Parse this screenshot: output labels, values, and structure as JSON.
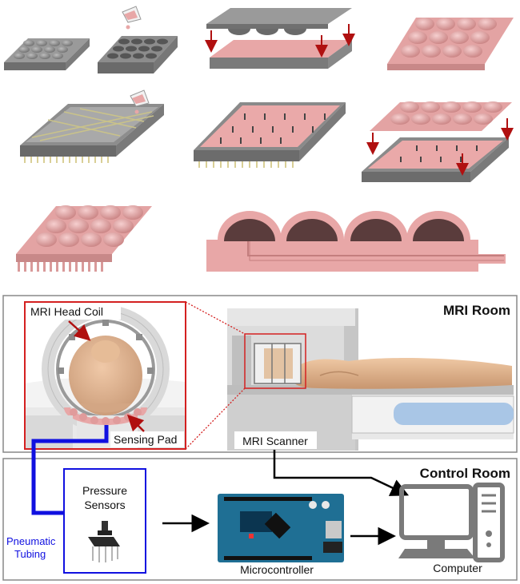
{
  "mri_room": {
    "title": "MRI Room",
    "head_coil_label": "MRI Head Coil",
    "sensing_pad_label": "Sensing Pad",
    "scanner_label": "MRI Scanner"
  },
  "control_room": {
    "title": "Control Room",
    "pressure_sensors_line1": "Pressure",
    "pressure_sensors_line2": "Sensors",
    "tubing_line1": "Pneumatic",
    "tubing_line2": "Tubing",
    "microcontroller_label": "Microcontroller",
    "computer_label": "Computer"
  },
  "colors": {
    "pad_pink": "#e8a7a7",
    "mold_gray": "#8a8a8a",
    "arrow_red": "#b01010",
    "inset_border": "#d42020",
    "tubing_blue": "#1010e0",
    "board_teal": "#1f6f94"
  }
}
